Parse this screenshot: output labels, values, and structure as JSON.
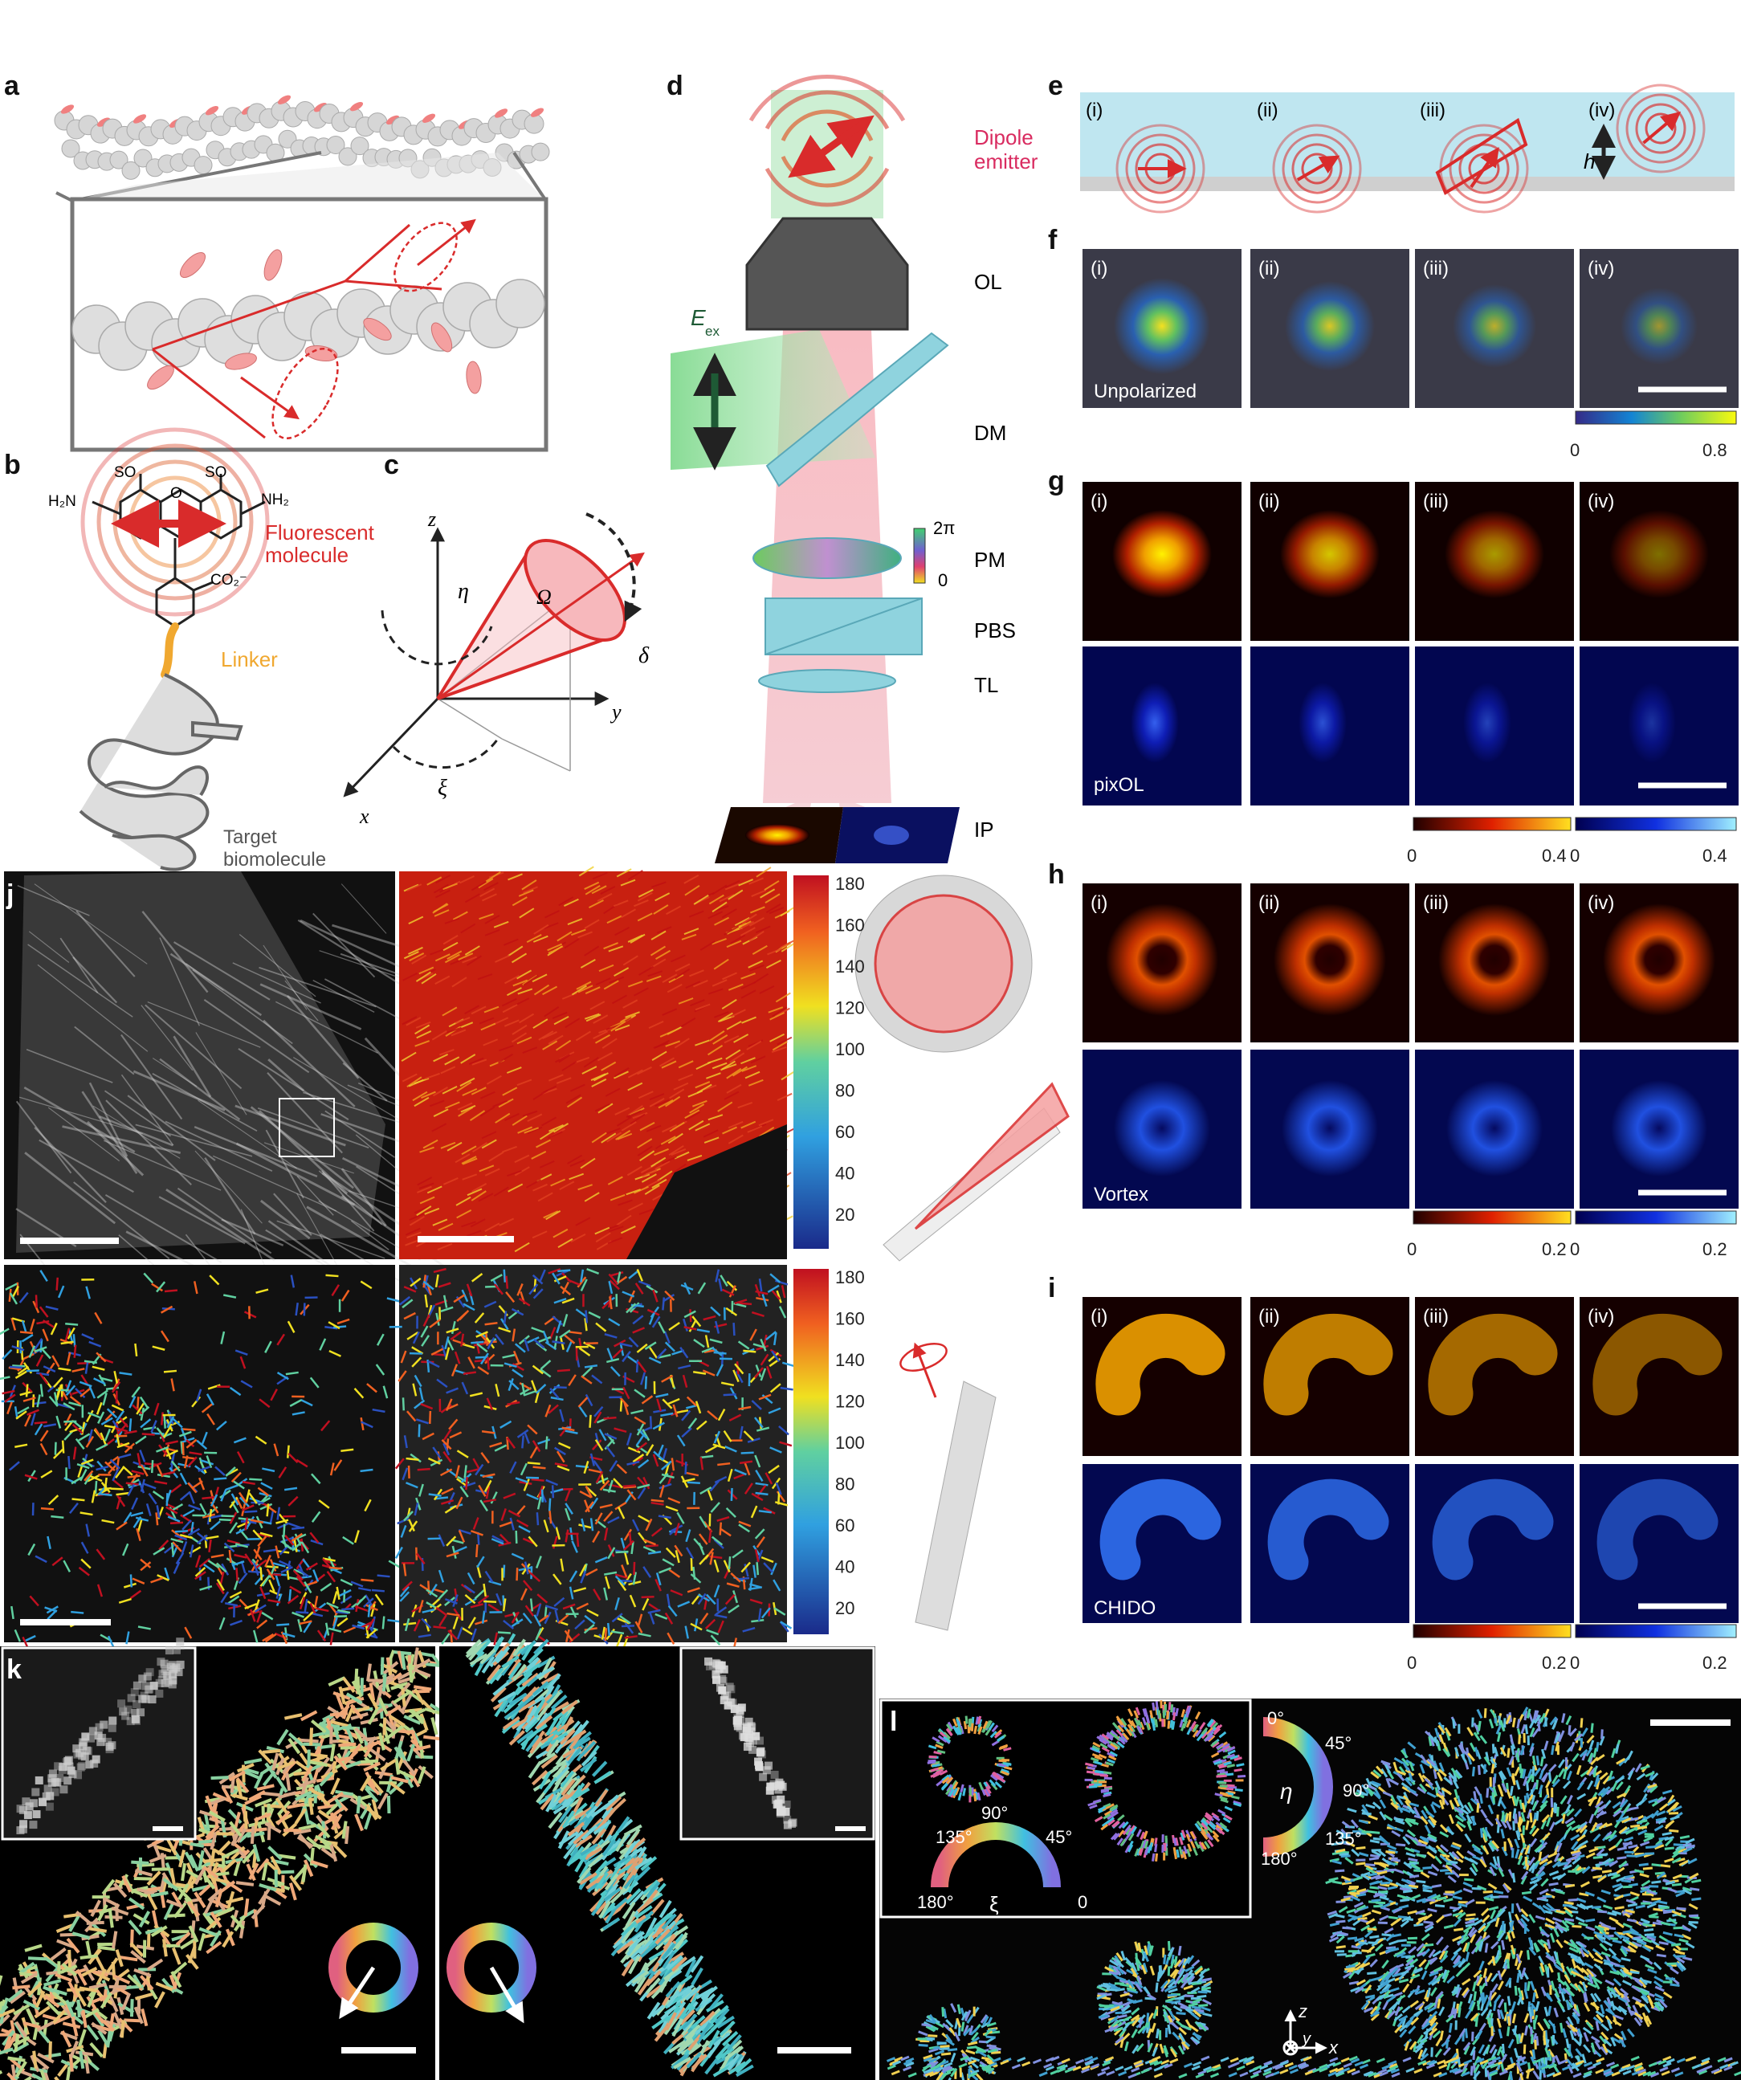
{
  "panels": {
    "a": "a",
    "b": "b",
    "c": "c",
    "d": "d",
    "e": "e",
    "f": "f",
    "g": "g",
    "h": "h",
    "i": "i",
    "j": "j",
    "k": "k",
    "l": "l"
  },
  "b": {
    "so3a": "SO",
    "so3b": "SO",
    "h2n": "H₂N",
    "nh2": "NH₂",
    "o": "O",
    "co2": "CO₂⁻",
    "fluor1": "Fluorescent",
    "fluor2": "molecule",
    "linker": "Linker",
    "target1": "Target",
    "target2": "biomolecule"
  },
  "c": {
    "z": "z",
    "y": "y",
    "x": "x",
    "eta": "η",
    "xi": "ξ",
    "omega": "Ω",
    "delta": "δ"
  },
  "d": {
    "dipole1": "Dipole",
    "dipole2": "emitter",
    "ol": "OL",
    "dm": "DM",
    "pm": "PM",
    "pbs": "PBS",
    "tl": "TL",
    "ip": "IP",
    "eex": "E",
    "eex_sub": "ex",
    "twopi": "2π",
    "zero": "0"
  },
  "e": {
    "i": "(i)",
    "ii": "(ii)",
    "iii": "(iii)",
    "iv": "(iv)",
    "h": "h"
  },
  "roman": [
    "(i)",
    "(ii)",
    "(iii)",
    "(iv)"
  ],
  "f": {
    "caption": "Unpolarized",
    "cb_min": "0",
    "cb_max": "0.8"
  },
  "g": {
    "caption": "pixOL",
    "cb_min": "0",
    "cb_max": "0.4"
  },
  "h": {
    "caption": "Vortex",
    "cb_min": "0",
    "cb_max": "0.2"
  },
  "i": {
    "caption": "CHIDO",
    "cb_min": "0",
    "cb_max": "0.2"
  },
  "j_cb": [
    "180",
    "160",
    "140",
    "120",
    "100",
    "80",
    "60",
    "40",
    "20"
  ],
  "l": {
    "xi_ticks": [
      "180°",
      "135°",
      "90°",
      "45°",
      "0"
    ],
    "xi": "ξ",
    "eta_ticks": [
      "0°",
      "45°",
      "90°",
      "135°",
      "180°"
    ],
    "eta": "η",
    "ax_z": "z",
    "ax_y": "y",
    "ax_x": "x"
  },
  "colors": {
    "red": "#d92b2b",
    "cyan": "#8fd3de",
    "orange": "#f0a830",
    "sky": "#bfe6f0"
  }
}
